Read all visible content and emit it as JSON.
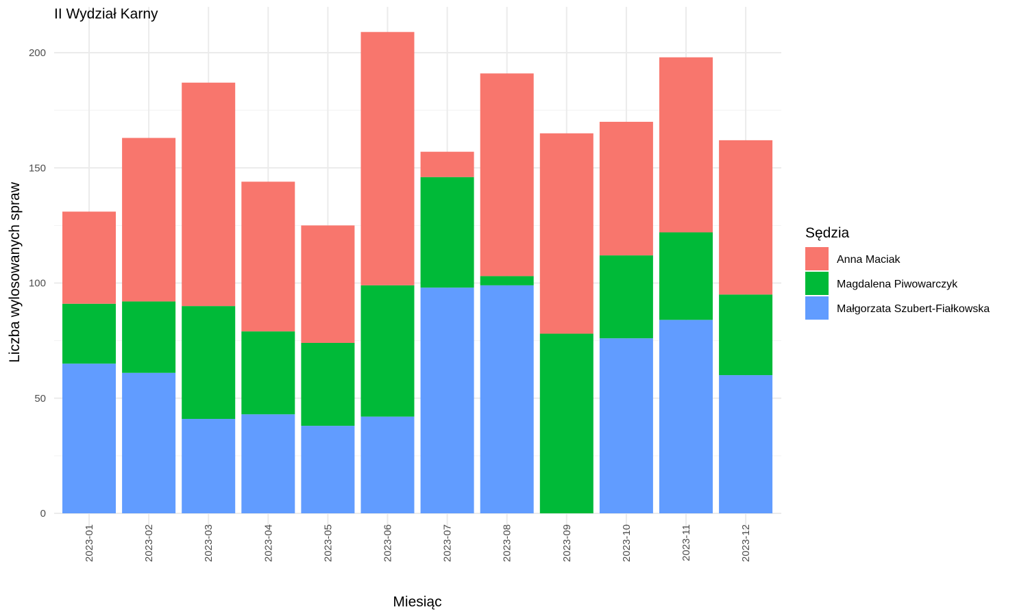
{
  "chart_data": {
    "type": "bar",
    "stacked": true,
    "title": "II Wydział Karny",
    "xlabel": "Miesiąc",
    "ylabel": "Liczba wylosowanych spraw",
    "categories": [
      "2023-01",
      "2023-02",
      "2023-03",
      "2023-04",
      "2023-05",
      "2023-06",
      "2023-07",
      "2023-08",
      "2023-09",
      "2023-10",
      "2023-11",
      "2023-12"
    ],
    "ylim": [
      0,
      215
    ],
    "yticks": [
      0,
      50,
      100,
      150,
      200
    ],
    "grid": true,
    "legend": {
      "title": "Sędzia",
      "position": "right"
    },
    "series": [
      {
        "name": "Małgorzata Szubert-Fiałkowska",
        "color": "#619CFF",
        "values": [
          65,
          61,
          41,
          43,
          38,
          42,
          98,
          99,
          0,
          76,
          84,
          60
        ]
      },
      {
        "name": "Magdalena Piwowarczyk",
        "color": "#00BA38",
        "values": [
          26,
          31,
          49,
          36,
          36,
          57,
          48,
          4,
          78,
          36,
          38,
          35
        ]
      },
      {
        "name": "Anna Maciak",
        "color": "#F8766D",
        "values": [
          40,
          71,
          97,
          65,
          51,
          110,
          11,
          88,
          87,
          58,
          76,
          67
        ]
      }
    ],
    "legend_order": [
      "Anna Maciak",
      "Magdalena Piwowarczyk",
      "Małgorzata Szubert-Fiałkowska"
    ]
  }
}
